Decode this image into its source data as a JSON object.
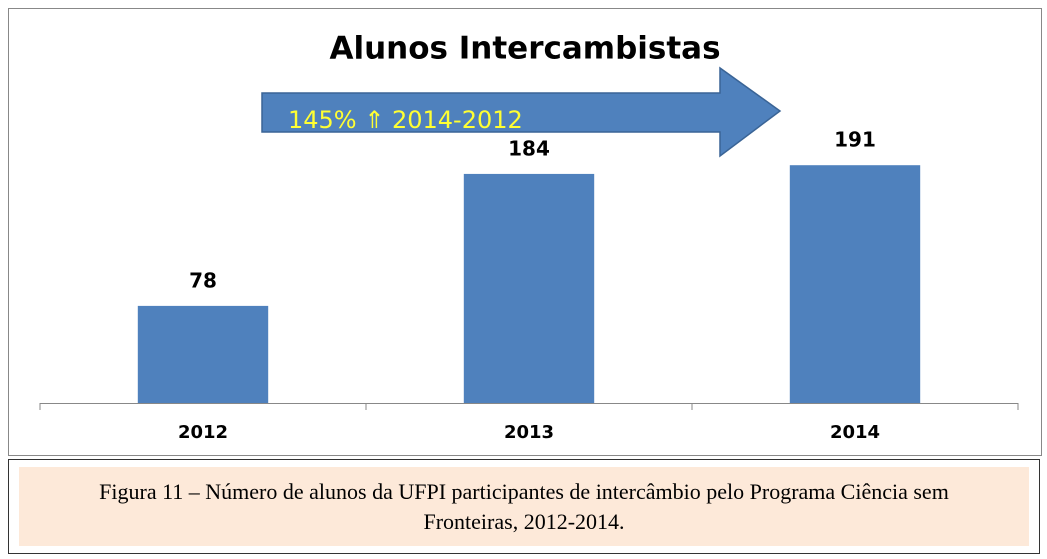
{
  "chart_data": {
    "type": "bar",
    "title": "Alunos Intercambistas",
    "annotation": "145% ⇑ 2014-2012",
    "categories": [
      "2012",
      "2013",
      "2014"
    ],
    "values": [
      78,
      184,
      191
    ],
    "color": "#4f81bd",
    "ylim": [
      0,
      200
    ],
    "grid": false
  },
  "caption": "Figura 11 – Número de alunos da UFPI participantes de intercâmbio pelo Programa Ciência sem Fronteiras, 2012-2014."
}
